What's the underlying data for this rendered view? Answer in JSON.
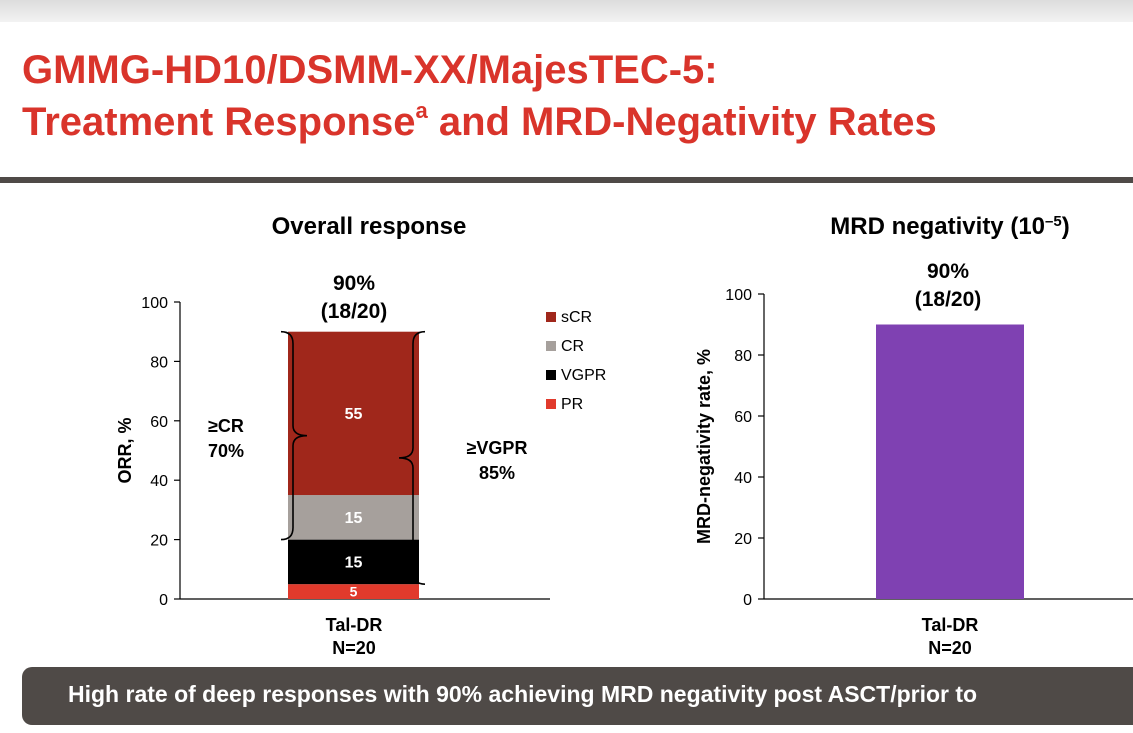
{
  "slide": {
    "title_line1": "GMMG-HD10/DSMM-XX/MajesTEC-5:",
    "title_line2_start": "Treatment Response",
    "title_superscript": "a",
    "title_line2_end": " and MRD-Negativity Rates",
    "banner": "High rate of deep responses with 90% achieving MRD negativity post ASCT/prior to"
  },
  "colors": {
    "title": "#d9342b",
    "sCR": "#a0271b",
    "CR": "#a6a09c",
    "VGPR": "#000000",
    "PR": "#e13a2c",
    "MRD": "#7f41b2",
    "banner": "#4f4a47"
  },
  "chart_data": [
    {
      "type": "bar",
      "stacked": true,
      "title": "Overall response",
      "ylabel": "ORR, %",
      "ylim": [
        0,
        100
      ],
      "yticks": [
        0,
        20,
        40,
        60,
        80,
        100
      ],
      "categories": [
        "Tal-DR"
      ],
      "category_labels": [
        [
          "Tal-DR",
          "N=20"
        ]
      ],
      "total_label": [
        "90%",
        "(18/20)"
      ],
      "series": [
        {
          "name": "PR",
          "values": [
            5
          ]
        },
        {
          "name": "VGPR",
          "values": [
            15
          ]
        },
        {
          "name": "CR",
          "values": [
            15
          ]
        },
        {
          "name": "sCR",
          "values": [
            55
          ]
        }
      ],
      "legend_order": [
        "sCR",
        "CR",
        "VGPR",
        "PR"
      ],
      "legend_position": "right",
      "annotations": [
        {
          "lines": [
            "≥CR",
            "70%"
          ],
          "from": 20,
          "to": 90,
          "side": "left"
        },
        {
          "lines": [
            "≥VGPR",
            "85%"
          ],
          "from": 5,
          "to": 90,
          "side": "right"
        }
      ]
    },
    {
      "type": "bar",
      "title": "MRD negativity (10",
      "title_superscript": "–5",
      "title_end": ")",
      "ylabel": "MRD-negativity rate, %",
      "ylim": [
        0,
        100
      ],
      "yticks": [
        0,
        20,
        40,
        60,
        80,
        100
      ],
      "categories": [
        "Tal-DR"
      ],
      "category_labels": [
        [
          "Tal-DR",
          "N=20"
        ]
      ],
      "values": [
        90
      ],
      "value_label": [
        "90%",
        "(18/20)"
      ]
    }
  ]
}
